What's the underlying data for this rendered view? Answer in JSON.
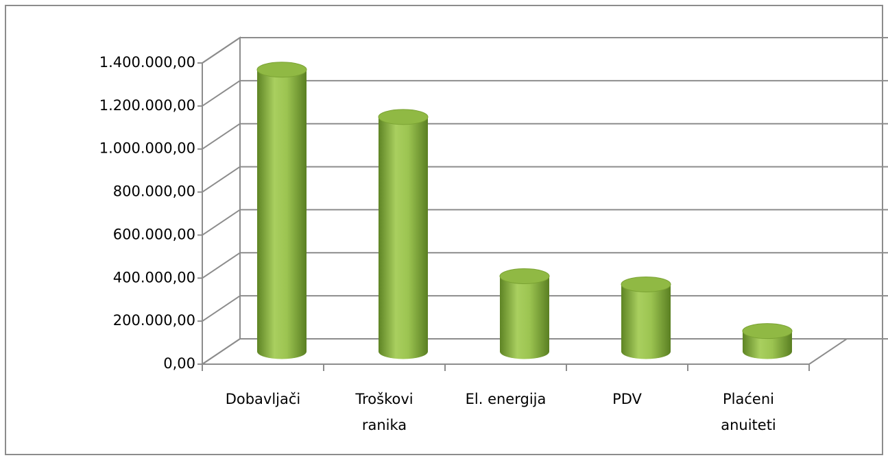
{
  "chart_data": {
    "type": "bar3d",
    "categories": [
      "Dobavljači",
      "Troškovi ranika",
      "El. energija",
      "PDV",
      "Plaćeni anuiteti"
    ],
    "values": [
      1310000,
      1090000,
      350000,
      312000,
      95000
    ],
    "color": "#8db43e",
    "ylim": [
      0,
      1400000
    ],
    "yticks": [
      {
        "value": 0,
        "label": "0,00"
      },
      {
        "value": 200000,
        "label": "200.000,00"
      },
      {
        "value": 400000,
        "label": "400.000,00"
      },
      {
        "value": 600000,
        "label": "600.000,00"
      },
      {
        "value": 800000,
        "label": "800.000,00"
      },
      {
        "value": 1000000,
        "label": "1.000.000,00"
      },
      {
        "value": 1200000,
        "label": "1.200.000,00"
      },
      {
        "value": 1400000,
        "label": "1.400.000,00"
      }
    ],
    "grid": true
  }
}
